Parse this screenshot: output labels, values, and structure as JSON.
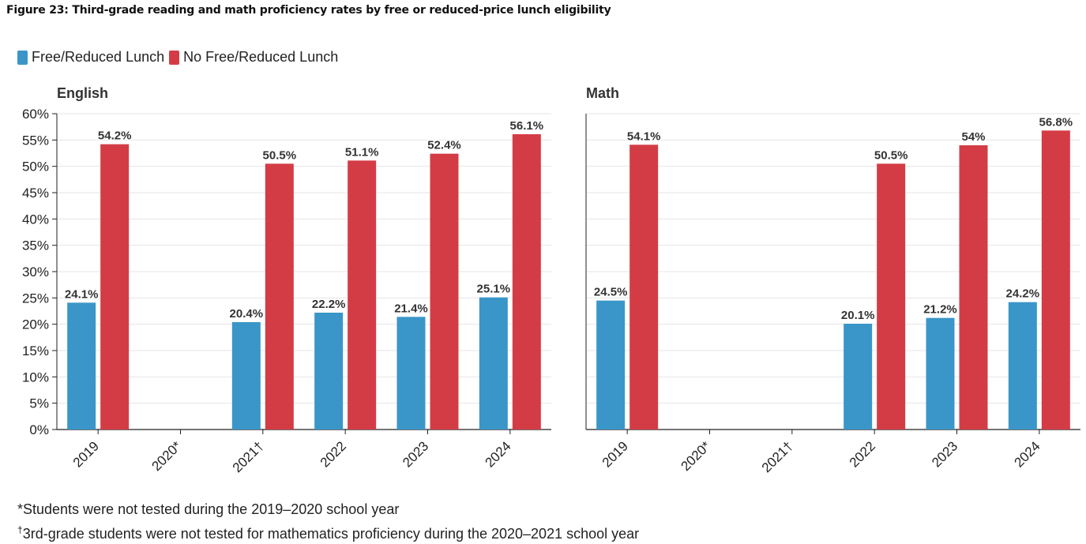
{
  "figure_title": "Figure 23: Third-grade reading and math proficiency rates by free or reduced-price lunch eligibility",
  "legend": [
    {
      "label": "Free/Reduced Lunch",
      "color": "#3a96c8"
    },
    {
      "label": "No Free/Reduced Lunch",
      "color": "#d43c45"
    }
  ],
  "footnotes": {
    "note1": "*Students were not tested during the 2019–2020 school year",
    "note2_mark": "†",
    "note2_text": "3rd-grade students were not tested for mathematics proficiency during the 2020–2021 school year"
  },
  "chart_data": [
    {
      "type": "bar",
      "title": "English",
      "categories": [
        "2019",
        "2020*",
        "2021†",
        "2022",
        "2023",
        "2024"
      ],
      "ylim": [
        0,
        60
      ],
      "yticks": [
        "0%",
        "5%",
        "10%",
        "15%",
        "20%",
        "25%",
        "30%",
        "35%",
        "40%",
        "45%",
        "50%",
        "55%",
        "60%"
      ],
      "grid": true,
      "legend_position": "top-left",
      "series": [
        {
          "name": "Free/Reduced Lunch",
          "color": "#3a96c8",
          "values": [
            24.1,
            null,
            20.4,
            22.2,
            21.4,
            25.1
          ],
          "labels": [
            "24.1%",
            "",
            "20.4%",
            "22.2%",
            "21.4%",
            "25.1%"
          ]
        },
        {
          "name": "No Free/Reduced Lunch",
          "color": "#d43c45",
          "values": [
            54.2,
            null,
            50.5,
            51.1,
            52.4,
            56.1
          ],
          "labels": [
            "54.2%",
            "",
            "50.5%",
            "51.1%",
            "52.4%",
            "56.1%"
          ]
        }
      ]
    },
    {
      "type": "bar",
      "title": "Math",
      "categories": [
        "2019",
        "2020*",
        "2021†",
        "2022",
        "2023",
        "2024"
      ],
      "ylim": [
        0,
        60
      ],
      "grid": true,
      "series": [
        {
          "name": "Free/Reduced Lunch",
          "color": "#3a96c8",
          "values": [
            24.5,
            null,
            null,
            20.1,
            21.2,
            24.2
          ],
          "labels": [
            "24.5%",
            "",
            "",
            "20.1%",
            "21.2%",
            "24.2%"
          ]
        },
        {
          "name": "No Free/Reduced Lunch",
          "color": "#d43c45",
          "values": [
            54.1,
            null,
            null,
            50.5,
            54,
            56.8
          ],
          "labels": [
            "54.1%",
            "",
            "",
            "50.5%",
            "54%",
            "56.8%"
          ]
        }
      ]
    }
  ]
}
